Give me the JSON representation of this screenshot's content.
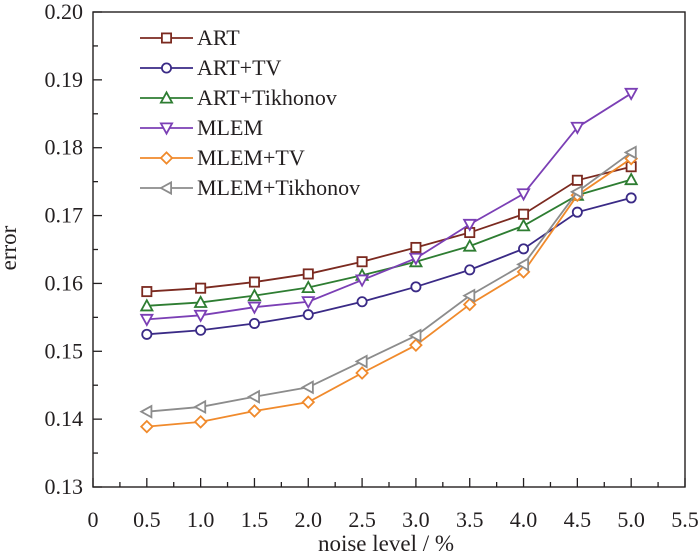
{
  "chart_data": {
    "type": "line",
    "xlabel": "noise level / %",
    "ylabel": "error",
    "xlim": [
      0,
      5.5
    ],
    "ylim": [
      0.13,
      0.2
    ],
    "xticks": [
      "0",
      "0.5",
      "1.0",
      "1.5",
      "2.0",
      "2.5",
      "3.0",
      "3.5",
      "4.0",
      "4.5",
      "5.0",
      "5.5"
    ],
    "yticks": [
      "0.13",
      "0.14",
      "0.15",
      "0.16",
      "0.17",
      "0.18",
      "0.19",
      "0.20"
    ],
    "grid": false,
    "legend_position": "top-left",
    "x": [
      0.5,
      1.0,
      1.5,
      2.0,
      2.5,
      3.0,
      3.5,
      4.0,
      4.5,
      5.0
    ],
    "series": [
      {
        "name": "ART",
        "color": "#7b2a20",
        "marker": "square",
        "values": [
          0.1588,
          0.1593,
          0.1602,
          0.1614,
          0.1632,
          0.1653,
          0.1675,
          0.1702,
          0.1752,
          0.1772
        ]
      },
      {
        "name": "ART+TV",
        "color": "#3a2a86",
        "marker": "circle",
        "values": [
          0.1525,
          0.1531,
          0.1541,
          0.1554,
          0.1573,
          0.1595,
          0.162,
          0.1651,
          0.1705,
          0.1726
        ]
      },
      {
        "name": "ART+Tikhonov",
        "color": "#2e7d32",
        "marker": "triangle-up",
        "values": [
          0.1567,
          0.1572,
          0.1582,
          0.1594,
          0.1612,
          0.1632,
          0.1655,
          0.1685,
          0.173,
          0.1753
        ]
      },
      {
        "name": "MLEM",
        "color": "#7b3fb5",
        "marker": "triangle-down",
        "values": [
          0.1547,
          0.1553,
          0.1565,
          0.1573,
          0.1605,
          0.1637,
          0.1687,
          0.1732,
          0.183,
          0.188
        ]
      },
      {
        "name": "MLEM+TV",
        "color": "#f08a2c",
        "marker": "diamond",
        "values": [
          0.1389,
          0.1396,
          0.1412,
          0.1425,
          0.1468,
          0.1509,
          0.1569,
          0.1617,
          0.173,
          0.1784
        ]
      },
      {
        "name": "MLEM+Tikhonov",
        "color": "#8c8c8c",
        "marker": "triangle-left",
        "values": [
          0.1411,
          0.1418,
          0.1433,
          0.1447,
          0.1485,
          0.1523,
          0.1582,
          0.1628,
          0.1735,
          0.1793
        ]
      }
    ]
  }
}
